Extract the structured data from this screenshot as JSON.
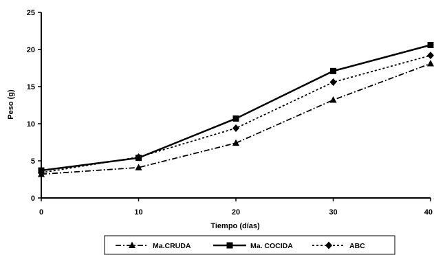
{
  "chart_data": {
    "type": "line",
    "xlabel": "Tiempo (días)",
    "ylabel": "Peso (g)",
    "x": [
      0,
      10,
      20,
      30,
      40
    ],
    "xticks": [
      "0",
      "10",
      "20",
      "30",
      "40"
    ],
    "yticks": [
      "0",
      "5",
      "10",
      "15",
      "20",
      "25"
    ],
    "xlim": [
      0,
      40
    ],
    "ylim": [
      0,
      25
    ],
    "grid": false,
    "legend_position": "bottom",
    "series": [
      {
        "name": "Ma.CRUDA",
        "values": [
          3.2,
          4.1,
          7.4,
          13.2,
          18.1
        ],
        "marker": "triangle",
        "dash": "dash-dot",
        "color": "#000000"
      },
      {
        "name": "Ma. COCIDA",
        "values": [
          3.7,
          5.4,
          10.7,
          17.1,
          20.6
        ],
        "marker": "square",
        "dash": "solid",
        "color": "#000000"
      },
      {
        "name": "ABC",
        "values": [
          3.4,
          5.5,
          9.4,
          15.6,
          19.2
        ],
        "marker": "diamond",
        "dash": "dotted",
        "color": "#000000"
      }
    ]
  }
}
